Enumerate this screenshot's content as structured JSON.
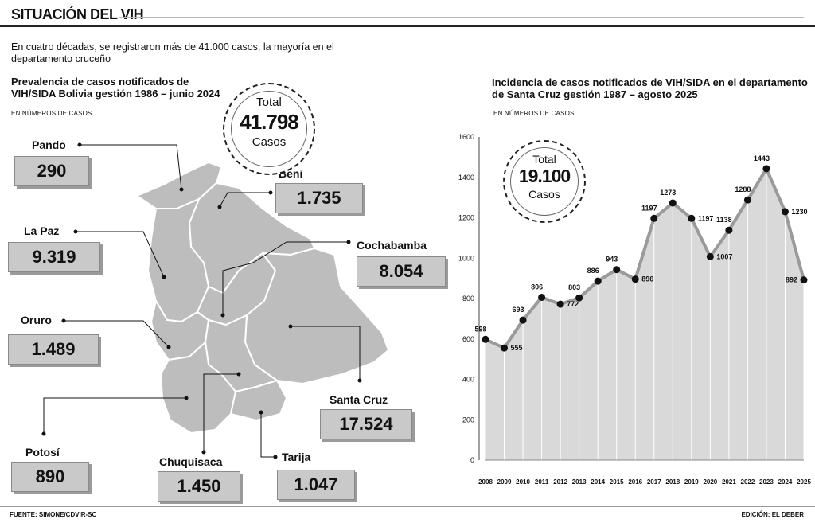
{
  "header": {
    "title": "SITUACIÓN DEL VIH",
    "subtitle": "En cuatro décadas, se registraron más de 41.000 casos, la mayoría en el departamento cruceño"
  },
  "map_panel": {
    "title_line1": "Prevalencia de casos notificados de",
    "title_line2": "VIH/SIDA Bolivia gestión 1986 – junio 2024",
    "unit_note": "EN NÚMEROS DE CASOS",
    "total": {
      "label_top": "Total",
      "value": "41.798",
      "label_bottom": "Casos"
    },
    "departments": [
      {
        "name": "Pando",
        "value": "290"
      },
      {
        "name": "Beni",
        "value": "1.735"
      },
      {
        "name": "La Paz",
        "value": "9.319"
      },
      {
        "name": "Cochabamba",
        "value": "8.054"
      },
      {
        "name": "Oruro",
        "value": "1.489"
      },
      {
        "name": "Santa Cruz",
        "value": "17.524"
      },
      {
        "name": "Potosí",
        "value": "890"
      },
      {
        "name": "Chuquisaca",
        "value": "1.450"
      },
      {
        "name": "Tarija",
        "value": "1.047"
      }
    ]
  },
  "chart_data": {
    "type": "area",
    "title": "Incidencia de casos notificados de VIH/SIDA en el departamento de Santa Cruz gestión 1987 – agosto 2025",
    "unit_note": "EN NÚMEROS DE CASOS",
    "x": [
      "2008",
      "2009",
      "2010",
      "2011",
      "2012",
      "2013",
      "2014",
      "2015",
      "2016",
      "2017",
      "2018",
      "2019",
      "2020",
      "2021",
      "2022",
      "2023",
      "2024",
      "2025"
    ],
    "values": [
      598,
      555,
      693,
      806,
      772,
      803,
      886,
      943,
      896,
      1197,
      1273,
      1197,
      1007,
      1138,
      1288,
      1443,
      1230,
      892
    ],
    "ylim": [
      0,
      1600
    ],
    "yticks": [
      "0",
      "200",
      "400",
      "600",
      "800",
      "1000",
      "1200",
      "1400",
      "1600"
    ],
    "grid": "vertical",
    "total": {
      "label_top": "Total",
      "value": "19.100",
      "label_bottom": "Casos"
    },
    "colors": {
      "area": "#d9d9d9",
      "line": "#9a9a9a",
      "marker": "#111111"
    }
  },
  "footer": {
    "source": "FUENTE: SIMONE/CDVIR-SC",
    "credit": "EDICIÓN: EL DEBER"
  }
}
